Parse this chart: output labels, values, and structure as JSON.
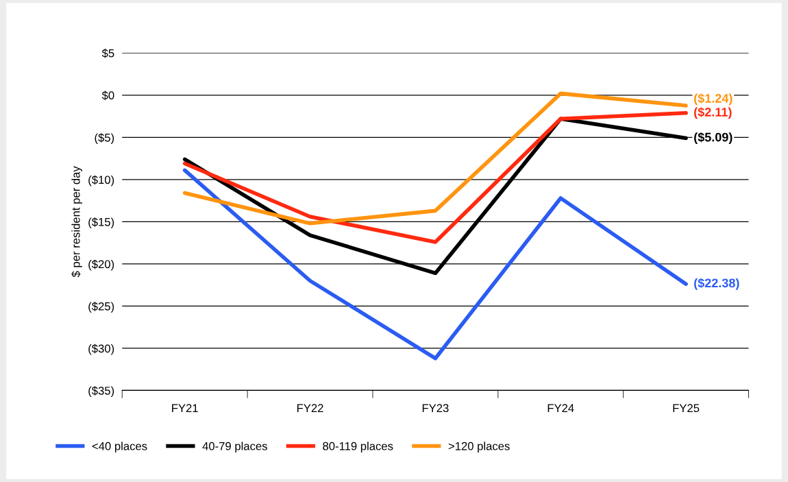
{
  "chart_data": {
    "type": "line",
    "ylabel": "$ per resident per day",
    "categories": [
      "FY21",
      "FY22",
      "FY23",
      "FY24",
      "FY25"
    ],
    "series": [
      {
        "name": "<40 places",
        "color": "#2b5cf2",
        "values": [
          -8.9,
          -22.0,
          -31.2,
          -12.2,
          -22.38
        ]
      },
      {
        "name": "40-79 places",
        "color": "#000000",
        "values": [
          -7.6,
          -16.6,
          -21.1,
          -2.8,
          -5.09
        ]
      },
      {
        "name": "80-119 places",
        "color": "#ff2a10",
        "values": [
          -8.1,
          -14.4,
          -17.4,
          -2.8,
          -2.11
        ]
      },
      {
        "name": ">120 places",
        "color": "#ff9410",
        "values": [
          -11.6,
          -15.2,
          -13.7,
          0.2,
          -1.24
        ]
      }
    ],
    "ylim": [
      -35,
      5
    ],
    "yticks": [
      {
        "value": 5,
        "label": "$5"
      },
      {
        "value": 0,
        "label": "$0"
      },
      {
        "value": -5,
        "label": "($5)"
      },
      {
        "value": -10,
        "label": "($10)"
      },
      {
        "value": -15,
        "label": "($15)"
      },
      {
        "value": -20,
        "label": "($20)"
      },
      {
        "value": -25,
        "label": "($25)"
      },
      {
        "value": -30,
        "label": "($30)"
      },
      {
        "value": -35,
        "label": "($35)"
      }
    ],
    "annotations": [
      {
        "text": "($22.38)",
        "x": "FY25",
        "y": -22.38
      },
      {
        "text": "($5.09)",
        "x": "FY25",
        "y": -5.09
      },
      {
        "text": "($2.11)",
        "x": "FY25",
        "y": -2.11
      },
      {
        "text": "($1.24)",
        "x": "FY25",
        "y": -1.24
      }
    ],
    "grid": "y",
    "legend": "bottom left",
    "line_style": "solid",
    "marker": "none"
  }
}
